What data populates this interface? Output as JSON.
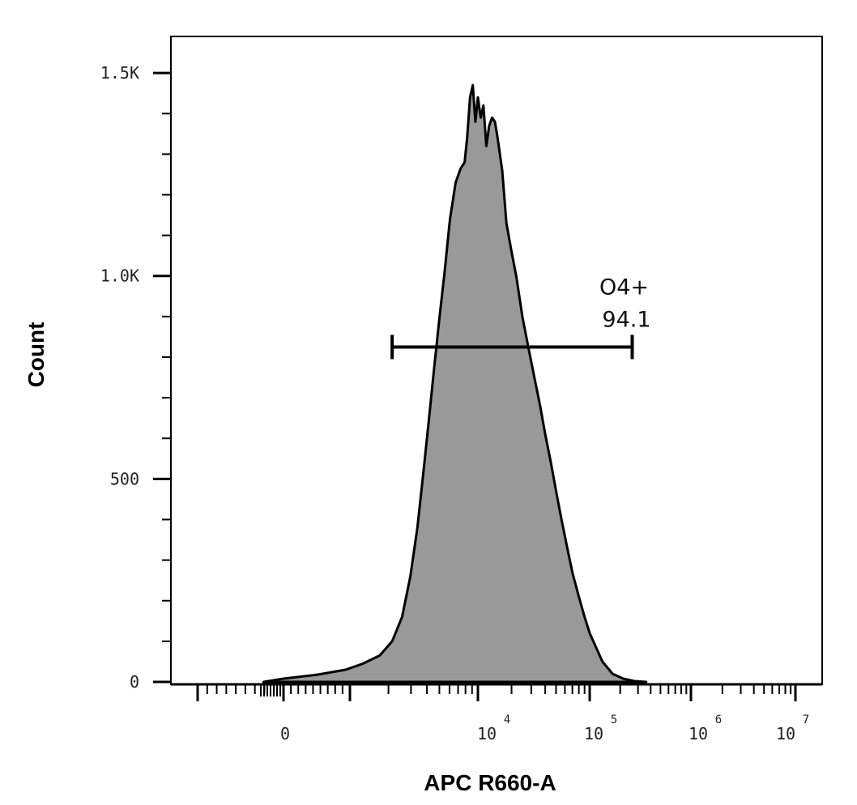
{
  "chart_data": {
    "type": "area",
    "xlabel": "APC R660-A",
    "ylabel": "Count",
    "x_scale": "biexponential",
    "y_ticks": [
      {
        "value": 0,
        "label": "0"
      },
      {
        "value": 500,
        "label": "500"
      },
      {
        "value": 1000,
        "label": "1.0K"
      },
      {
        "value": 1500,
        "label": "1.5K"
      }
    ],
    "ylim": [
      0,
      1590
    ],
    "x_ticks": [
      {
        "value": "0",
        "label": "0",
        "exp": ""
      },
      {
        "value": "1e4",
        "label": "10",
        "exp": "4"
      },
      {
        "value": "1e5",
        "label": "10",
        "exp": "5"
      },
      {
        "value": "1e6",
        "label": "10",
        "exp": "6"
      },
      {
        "value": "1e7",
        "label": "10",
        "exp": "7"
      }
    ],
    "series": [
      {
        "fill": "#999999",
        "stroke": "#000000",
        "x": [
          -100,
          0,
          200,
          500,
          800,
          1200,
          1600,
          2000,
          2400,
          2800,
          3200,
          3600,
          4000,
          4500,
          5000,
          5600,
          6300,
          7000,
          7600,
          8000,
          8500,
          9000,
          9500,
          10000,
          10600,
          11200,
          11900,
          12600,
          13400,
          14200,
          15000,
          16500,
          18000,
          20000,
          22000,
          25000,
          28000,
          32000,
          36000,
          40000,
          45000,
          50000,
          56000,
          63000,
          70000,
          80000,
          90000,
          100000,
          130000,
          160000,
          200000,
          250000,
          320000
        ],
        "y": [
          0,
          8,
          18,
          30,
          45,
          65,
          100,
          160,
          260,
          380,
          520,
          650,
          770,
          900,
          1010,
          1140,
          1230,
          1265,
          1280,
          1340,
          1440,
          1470,
          1380,
          1440,
          1390,
          1420,
          1320,
          1370,
          1390,
          1380,
          1340,
          1260,
          1130,
          1060,
          1000,
          900,
          830,
          750,
          680,
          610,
          540,
          470,
          400,
          330,
          270,
          210,
          160,
          120,
          50,
          20,
          8,
          2,
          0
        ]
      }
    ],
    "gates": [
      {
        "name": "O4+",
        "percent": "94.1",
        "x_min": 1600,
        "x_max": 240000,
        "level": 825
      }
    ]
  }
}
